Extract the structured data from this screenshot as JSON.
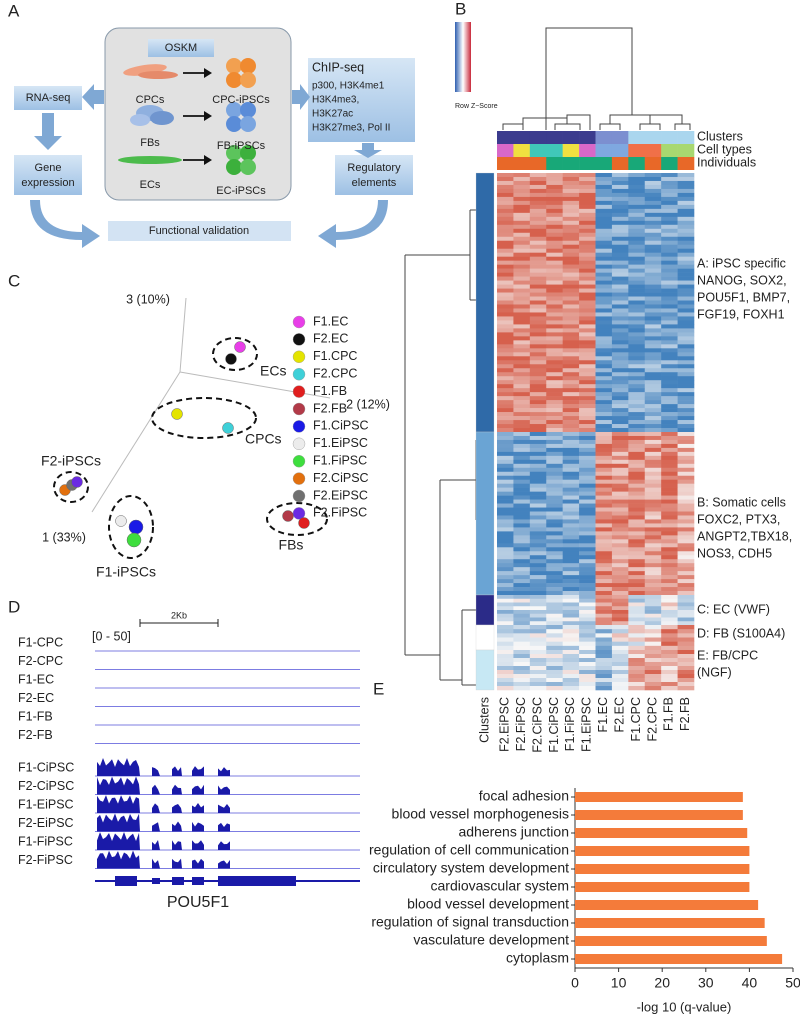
{
  "panel_labels": [
    "A",
    "B",
    "C",
    "D",
    "E"
  ],
  "panel_a": {
    "oskm": "OSKM",
    "cells": [
      [
        "CPCs",
        "CPC-iPSCs"
      ],
      [
        "FBs",
        "FB-iPSCs"
      ],
      [
        "ECs",
        "EC-iPSCs"
      ]
    ],
    "rna_seq": "RNA-seq",
    "gene_expression": [
      "Gene",
      "expression"
    ],
    "chip_title": "ChIP-seq",
    "chip_marks": [
      "p300, H3K4me1",
      "H3K4me3,",
      "H3K27ac",
      "H3K27me3, Pol II"
    ],
    "regulatory": [
      "Regulatory",
      "elements"
    ],
    "functional": "Functional validation"
  },
  "panel_b": {
    "scale_label": "Row Z−Score",
    "tracks": [
      "Clusters",
      "Cell types",
      "Individuals"
    ],
    "columns": [
      "F2.EiPSC",
      "F2.FiPSC",
      "F2.CiPSC",
      "F1.CiPSC",
      "F1.FiPSC",
      "F1.EiPSC",
      "F1.EC",
      "F2.EC",
      "F1.CPC",
      "F2.CPC",
      "F1.FB",
      "F2.FB"
    ],
    "row_label": "Clusters",
    "annotations": [
      [
        "A: iPSC specific",
        "NANOG, SOX2,",
        "POU5F1, BMP7,",
        "FGF19, FOXH1"
      ],
      [
        "B: Somatic cells",
        "FOXC2, PTX3,",
        "ANGPT2,TBX18,",
        "NOS3, CDH5"
      ],
      [
        "C: EC (VWF)"
      ],
      [
        "D: FB (S100A4)"
      ],
      [
        "E: FB/CPC",
        "(NGF)"
      ]
    ]
  },
  "panel_c": {
    "axes": [
      "3 (10%)",
      "2 (12%)",
      "1 (33%)"
    ],
    "legend": [
      {
        "name": "F1.EC",
        "color": "#e83ee8"
      },
      {
        "name": "F2.EC",
        "color": "#111111"
      },
      {
        "name": "F1.CPC",
        "color": "#e4e400"
      },
      {
        "name": "F2.CPC",
        "color": "#3ed0d8"
      },
      {
        "name": "F1.FB",
        "color": "#e01e1e"
      },
      {
        "name": "F2.FB",
        "color": "#b23a48"
      },
      {
        "name": "F1.CiPSC",
        "color": "#1a1ae6"
      },
      {
        "name": "F1.EiPSC",
        "color": "#ececec"
      },
      {
        "name": "F1.FiPSC",
        "color": "#3ede3e"
      },
      {
        "name": "F2.CiPSC",
        "color": "#e2700e"
      },
      {
        "name": "F2.EiPSC",
        "color": "#707070"
      },
      {
        "name": "F2.FiPSC",
        "color": "#6a2ae2"
      }
    ],
    "groups": [
      "ECs",
      "CPCs",
      "F2-iPSCs",
      "FBs",
      "F1-iPSCs"
    ]
  },
  "panel_d": {
    "scale": "2Kb",
    "range": "[0 - 50]",
    "tracks": [
      "F1-CPC",
      "F2-CPC",
      "F1-EC",
      "F2-EC",
      "F1-FB",
      "F2-FB",
      "F1-CiPSC",
      "F2-CiPSC",
      "F1-EiPSC",
      "F2-EiPSC",
      "F1-FiPSC",
      "F2-FiPSC"
    ],
    "gene": "POU5F1"
  },
  "chart_data": {
    "type": "hbar",
    "categories": [
      "focal adhesion",
      "blood vessel morphogenesis",
      "adherens junction",
      "regulation of cell communication",
      "circulatory system development",
      "cardiovascular system",
      "blood vessel development",
      "regulation of signal transduction",
      "vasculature development",
      "cytoplasm"
    ],
    "values": [
      38.5,
      38.5,
      39.5,
      40,
      40,
      40,
      42,
      43.5,
      44,
      47.5
    ],
    "color": "#f47b3a",
    "xlim": [
      0,
      50
    ],
    "xticks": [
      0,
      10,
      20,
      30,
      40,
      50
    ],
    "x_label": "-log 10 (q-value)"
  }
}
